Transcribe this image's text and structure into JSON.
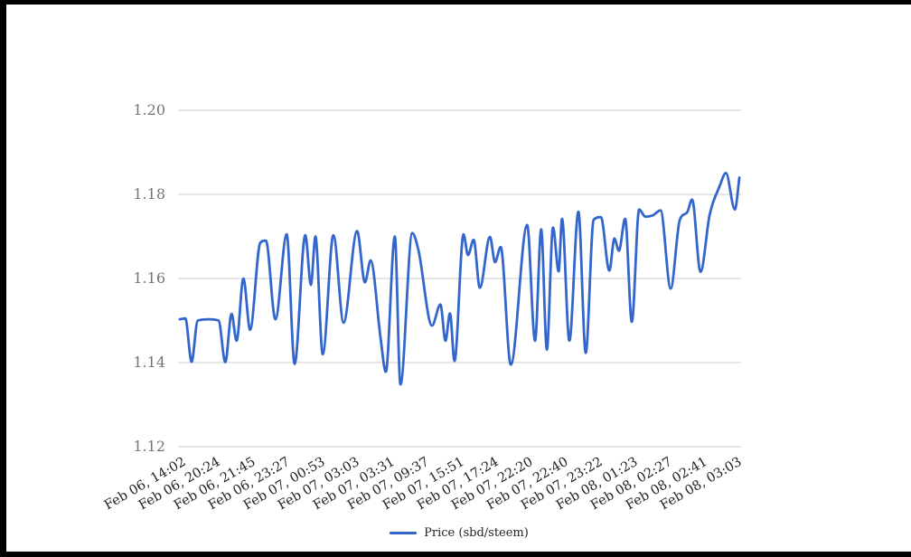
{
  "chart_data": {
    "type": "line",
    "title": "",
    "xlabel": "",
    "ylabel": "",
    "ylim": [
      1.12,
      1.2
    ],
    "y_ticks": [
      1.2,
      1.18,
      1.16,
      1.14,
      1.12
    ],
    "grid": true,
    "legend_position": "bottom-center",
    "x_tick_labels": [
      "Feb 06, 14:02",
      "Feb 06, 20:24",
      "Feb 06, 21:45",
      "Feb 06, 23:27",
      "Feb 07, 00:53",
      "Feb 07, 03:03",
      "Feb 07, 03:31",
      "Feb 07, 09:37",
      "Feb 07, 15:51",
      "Feb 07, 17:24",
      "Feb 07, 22:20",
      "Feb 07, 22:40",
      "Feb 07, 23:22",
      "Feb 08, 01:23",
      "Feb 08, 02:27",
      "Feb 08, 02:41",
      "Feb 08, 03:03"
    ],
    "series": [
      {
        "name": "Price (sbd/steem)",
        "color": "#3366cc",
        "points": [
          [
            0.003,
            1.1503
          ],
          [
            0.013,
            1.1505
          ],
          [
            0.024,
            1.1402
          ],
          [
            0.035,
            1.15
          ],
          [
            0.055,
            1.1503
          ],
          [
            0.072,
            1.15
          ],
          [
            0.084,
            1.1401
          ],
          [
            0.095,
            1.1516
          ],
          [
            0.104,
            1.1452
          ],
          [
            0.116,
            1.16
          ],
          [
            0.128,
            1.1478
          ],
          [
            0.146,
            1.1685
          ],
          [
            0.156,
            1.169
          ],
          [
            0.173,
            1.1503
          ],
          [
            0.193,
            1.1705
          ],
          [
            0.207,
            1.1397
          ],
          [
            0.226,
            1.1703
          ],
          [
            0.236,
            1.1585
          ],
          [
            0.244,
            1.17
          ],
          [
            0.257,
            1.142
          ],
          [
            0.276,
            1.1703
          ],
          [
            0.294,
            1.1495
          ],
          [
            0.318,
            1.1713
          ],
          [
            0.332,
            1.1591
          ],
          [
            0.342,
            1.1643
          ],
          [
            0.36,
            1.1455
          ],
          [
            0.369,
            1.1378
          ],
          [
            0.385,
            1.17
          ],
          [
            0.395,
            1.1348
          ],
          [
            0.416,
            1.1708
          ],
          [
            0.427,
            1.1667
          ],
          [
            0.451,
            1.1488
          ],
          [
            0.466,
            1.1538
          ],
          [
            0.475,
            1.1452
          ],
          [
            0.483,
            1.1517
          ],
          [
            0.491,
            1.1404
          ],
          [
            0.507,
            1.1705
          ],
          [
            0.515,
            1.1656
          ],
          [
            0.525,
            1.1692
          ],
          [
            0.536,
            1.1578
          ],
          [
            0.554,
            1.1699
          ],
          [
            0.563,
            1.1639
          ],
          [
            0.573,
            1.1675
          ],
          [
            0.591,
            1.1395
          ],
          [
            0.62,
            1.1727
          ],
          [
            0.634,
            1.1452
          ],
          [
            0.645,
            1.1717
          ],
          [
            0.655,
            1.1431
          ],
          [
            0.666,
            1.1721
          ],
          [
            0.676,
            1.1617
          ],
          [
            0.682,
            1.1742
          ],
          [
            0.695,
            1.1452
          ],
          [
            0.711,
            1.1759
          ],
          [
            0.724,
            1.1423
          ],
          [
            0.738,
            1.1739
          ],
          [
            0.751,
            1.1746
          ],
          [
            0.766,
            1.1619
          ],
          [
            0.775,
            1.1695
          ],
          [
            0.783,
            1.1666
          ],
          [
            0.794,
            1.1742
          ],
          [
            0.806,
            1.1497
          ],
          [
            0.819,
            1.1764
          ],
          [
            0.83,
            1.1747
          ],
          [
            0.843,
            1.175
          ],
          [
            0.857,
            1.1762
          ],
          [
            0.875,
            1.1576
          ],
          [
            0.891,
            1.1739
          ],
          [
            0.904,
            1.1757
          ],
          [
            0.913,
            1.1788
          ],
          [
            0.928,
            1.1616
          ],
          [
            0.944,
            1.175
          ],
          [
            0.962,
            1.182
          ],
          [
            0.973,
            1.1851
          ],
          [
            0.989,
            1.1764
          ],
          [
            0.997,
            1.184
          ]
        ]
      }
    ],
    "colors": {
      "line": "#3366cc",
      "gridline": "#cccccc",
      "y_label": "#757575",
      "x_label": "#222222",
      "legend_text": "#222222",
      "frame": "#000000",
      "background": "#ffffff"
    }
  },
  "legend": {
    "label": "Price (sbd/steem)"
  }
}
